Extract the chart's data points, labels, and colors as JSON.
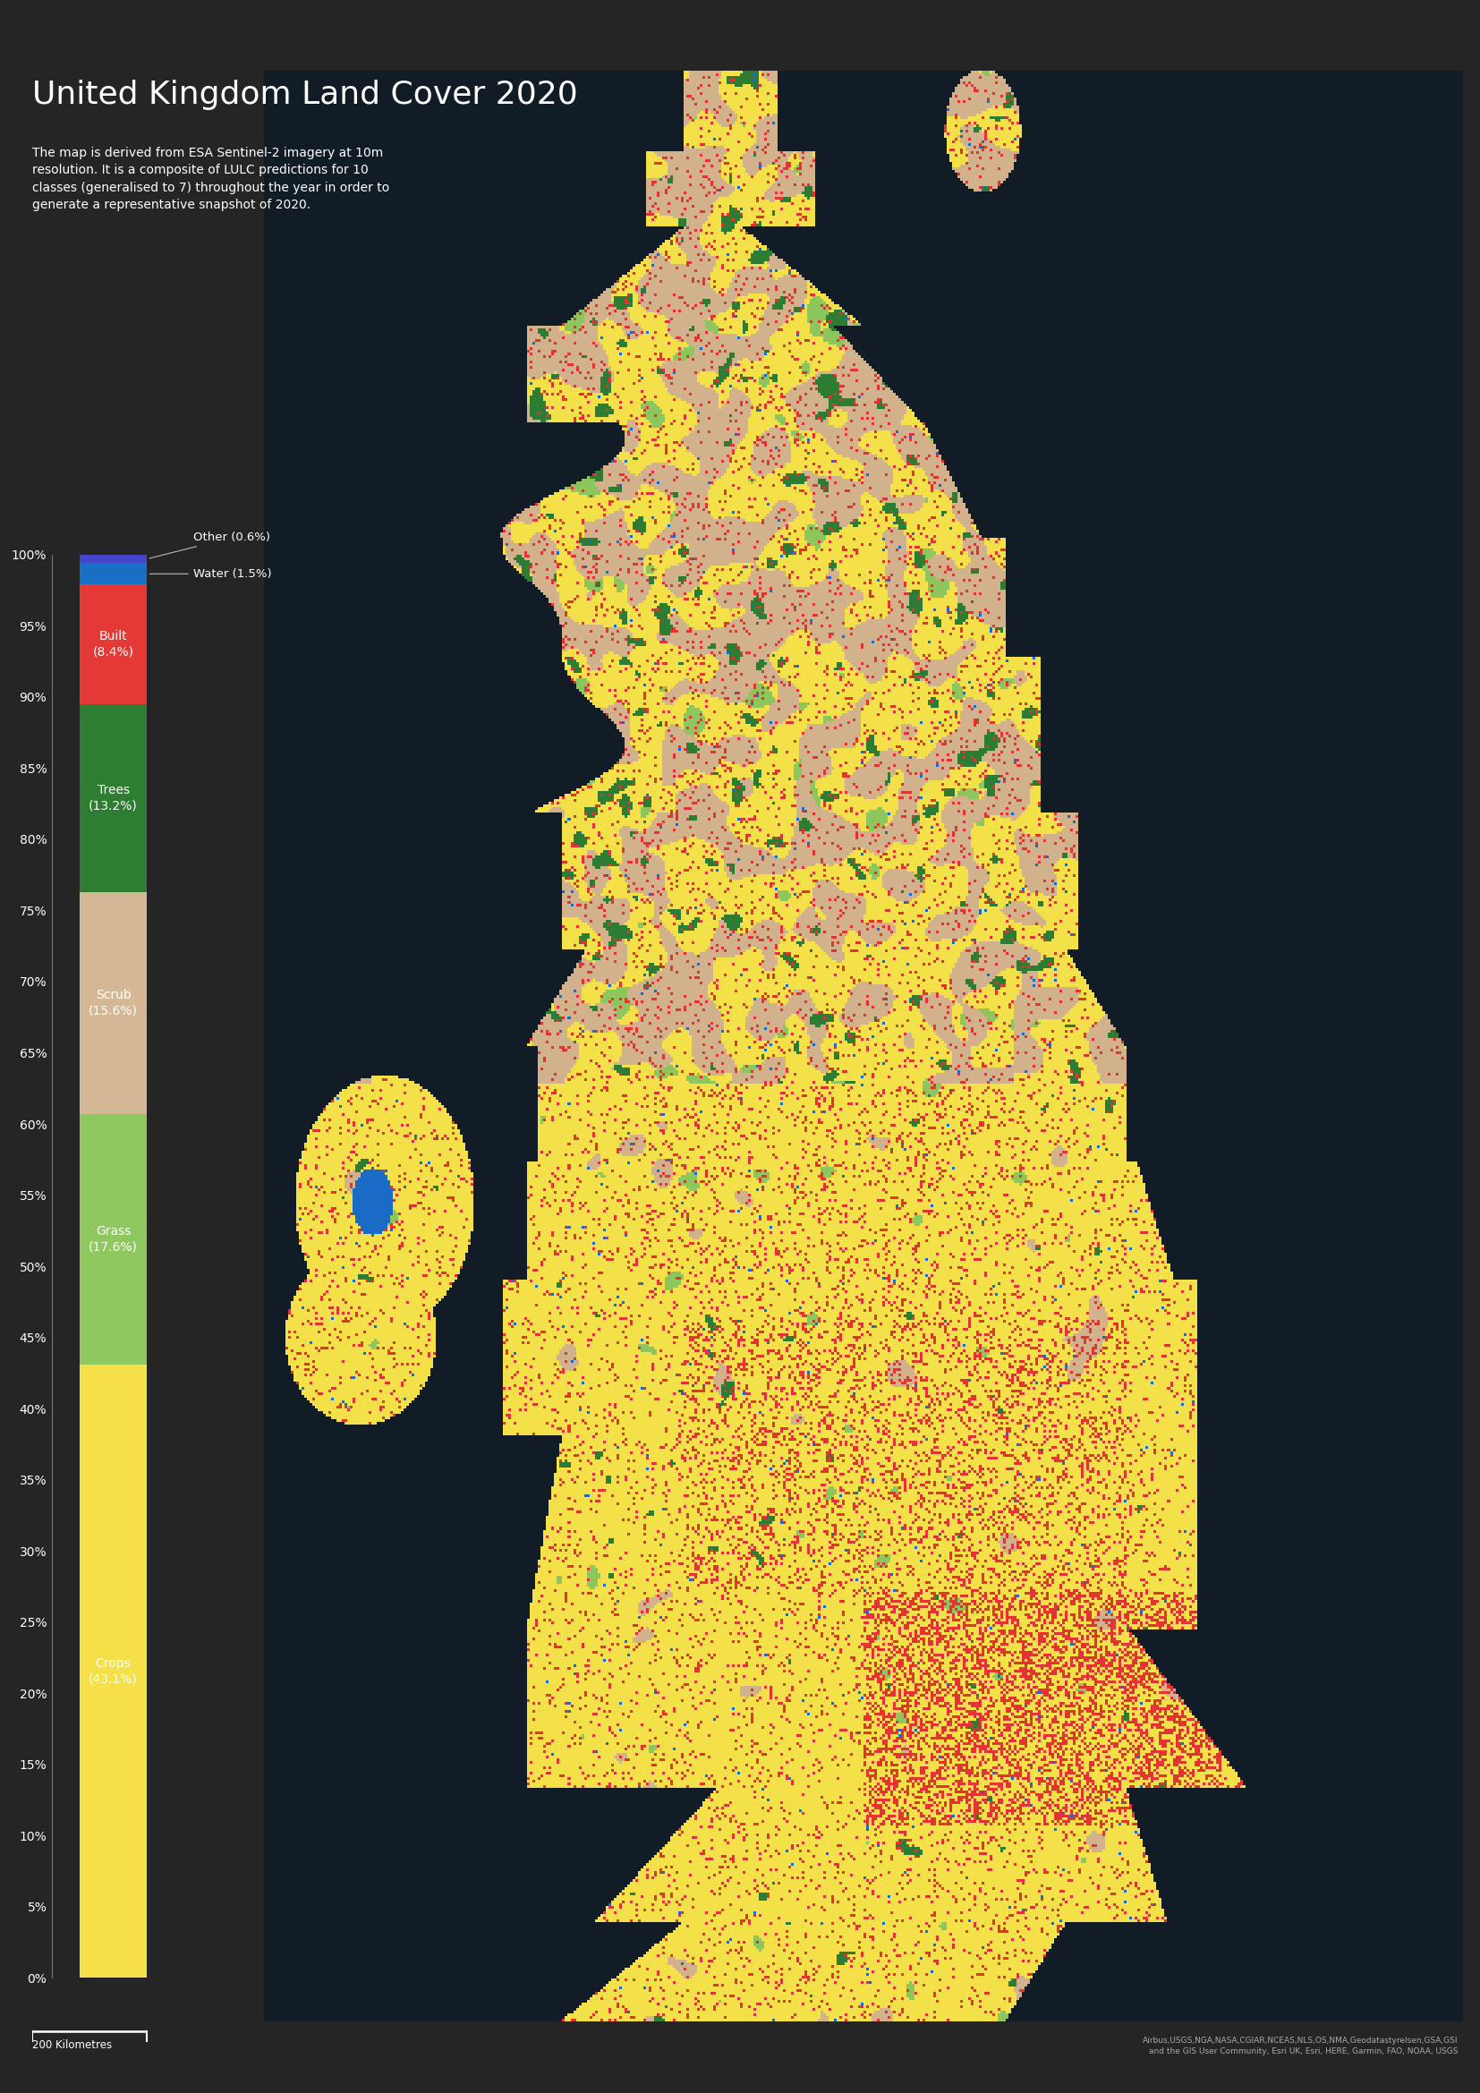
{
  "title": "United Kingdom Land Cover 2020",
  "subtitle": "The map is derived from ESA Sentinel-2 imagery at 10m\nresolution. It is a composite of LULC predictions for 10\nclasses (generalised to 7) throughout the year in order to\ngenerate a representative snapshot of 2020.",
  "background_color": "#252525",
  "sea_color": "#111c26",
  "text_color": "#ffffff",
  "categories": [
    "Crops",
    "Grass",
    "Scrub",
    "Trees",
    "Built",
    "Water",
    "Other"
  ],
  "values": [
    43.1,
    17.6,
    15.6,
    13.2,
    8.4,
    1.5,
    0.6
  ],
  "colors": [
    "#f5e04a",
    "#90c860",
    "#d4b896",
    "#2e7d32",
    "#e53935",
    "#1a6fc4",
    "#4444cc"
  ],
  "ylabel_ticks": [
    0,
    5,
    10,
    15,
    20,
    25,
    30,
    35,
    40,
    45,
    50,
    55,
    60,
    65,
    70,
    75,
    80,
    85,
    90,
    95,
    100
  ],
  "bar_label_fontsize": 10,
  "title_fontsize": 26,
  "subtitle_fontsize": 10,
  "tick_fontsize": 10,
  "credit_text": "Airbus,USGS,NGA,NASA,CGIAR,NCEAS,NLS,OS,NMA,Geodatastyrelsen,GSA,GSI\nand the GIS User Community, Esri UK, Esri, HERE, Garmin, FAO, NOAA, USGS",
  "scalebar_text": "200 Kilometres"
}
